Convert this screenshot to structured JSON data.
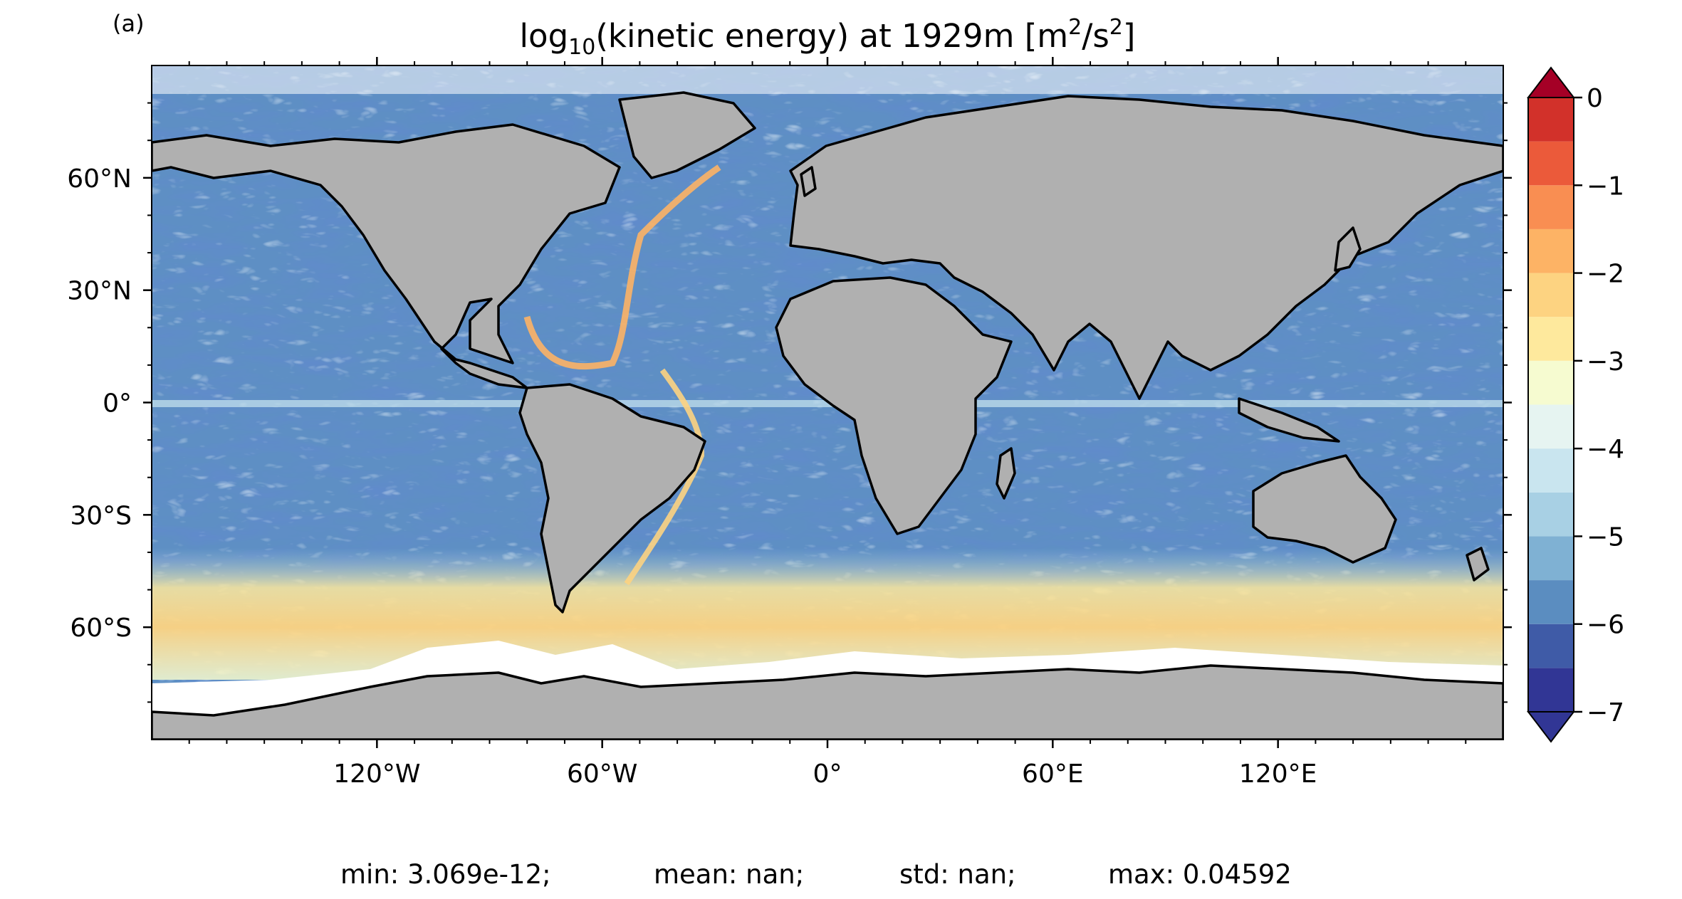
{
  "panel_label": "(a)",
  "title": {
    "prefix": "log",
    "subscript": "10",
    "main": "(kinetic energy) at 1929m [m",
    "sup1": "2",
    "mid": "/s",
    "sup2": "2",
    "suffix": "]"
  },
  "lat_ticks": [
    {
      "label": "60°N",
      "value": 60
    },
    {
      "label": "30°N",
      "value": 30
    },
    {
      "label": "0°",
      "value": 0
    },
    {
      "label": "30°S",
      "value": -30
    },
    {
      "label": "60°S",
      "value": -60
    }
  ],
  "lon_ticks": [
    {
      "label": "120°W",
      "value": -120
    },
    {
      "label": "60°W",
      "value": -60
    },
    {
      "label": "0°",
      "value": 0
    },
    {
      "label": "60°E",
      "value": 60
    },
    {
      "label": "120°E",
      "value": 120
    }
  ],
  "colorbar": {
    "ticks": [
      {
        "label": "0",
        "value": 0
      },
      {
        "label": "−1",
        "value": -1
      },
      {
        "label": "−2",
        "value": -2
      },
      {
        "label": "−3",
        "value": -3
      },
      {
        "label": "−4",
        "value": -4
      },
      {
        "label": "−5",
        "value": -5
      },
      {
        "label": "−6",
        "value": -6
      },
      {
        "label": "−7",
        "value": -7
      }
    ],
    "range": [
      -7,
      0
    ],
    "extend": "both",
    "levels": 14,
    "colors_low_to_high": [
      "#313695",
      "#3f5ba7",
      "#5b8dc0",
      "#7fb1d3",
      "#a8d0e4",
      "#c9e5ef",
      "#e6f4f1",
      "#f6fbd0",
      "#fee99d",
      "#fdd381",
      "#fdb365",
      "#f98e52",
      "#eb5a3a",
      "#d2312a",
      "#a50026",
      "#b2182b"
    ]
  },
  "stats": {
    "min": "min: 3.069e-12;",
    "mean": "mean: nan;",
    "std": "std: nan;",
    "max": "max: 0.04592"
  },
  "map": {
    "projection": "equirectangular",
    "lon_range": [
      -180,
      180
    ],
    "lat_range": [
      -90,
      90
    ],
    "land_color": "#b0b0b0",
    "coastline_color": "#000000"
  }
}
